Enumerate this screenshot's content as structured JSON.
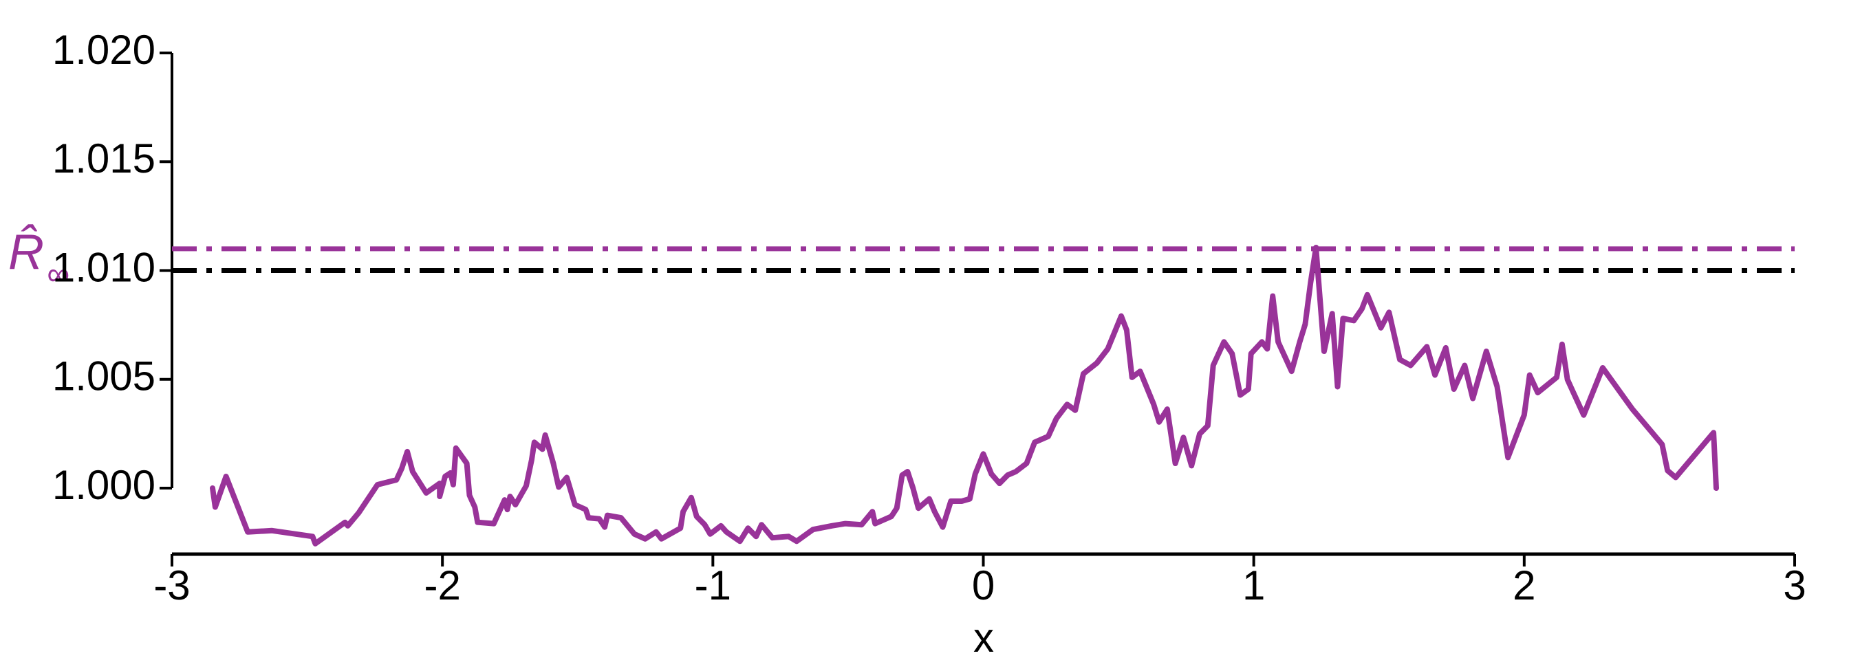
{
  "chart_data": {
    "type": "line",
    "xlabel": "x",
    "ylabel": {
      "text": "R̂",
      "subscript": "∞"
    },
    "xlim": [
      -3,
      3
    ],
    "xticks": [
      -3,
      -2,
      -1,
      0,
      1,
      2,
      3
    ],
    "ylim": [
      0.997,
      1.02
    ],
    "yticks": [
      {
        "value": 1.0,
        "label": "1.000"
      },
      {
        "value": 1.005,
        "label": "1.005"
      },
      {
        "value": 1.01,
        "label": "1.010"
      },
      {
        "value": 1.015,
        "label": "1.015"
      },
      {
        "value": 1.02,
        "label": "1.020"
      }
    ],
    "hlines": [
      {
        "y": 1.01,
        "color": "#000000"
      },
      {
        "y": 1.011,
        "color": "#993399"
      }
    ],
    "series": [
      {
        "color": "#993399",
        "x": [
          -2.85,
          -2.84,
          -2.8,
          -2.72,
          -2.63,
          -2.48,
          -2.47,
          -2.36,
          -2.35,
          -2.31,
          -2.24,
          -2.17,
          -2.15,
          -2.13,
          -2.11,
          -2.06,
          -2.01,
          -2.01,
          -1.99,
          -1.97,
          -1.96,
          -1.95,
          -1.91,
          -1.9,
          -1.88,
          -1.87,
          -1.81,
          -1.77,
          -1.76,
          -1.75,
          -1.73,
          -1.69,
          -1.67,
          -1.66,
          -1.63,
          -1.62,
          -1.59,
          -1.57,
          -1.54,
          -1.51,
          -1.47,
          -1.46,
          -1.42,
          -1.4,
          -1.39,
          -1.34,
          -1.29,
          -1.25,
          -1.21,
          -1.19,
          -1.12,
          -1.11,
          -1.08,
          -1.06,
          -1.03,
          -1.01,
          -0.97,
          -0.95,
          -0.9,
          -0.87,
          -0.84,
          -0.82,
          -0.78,
          -0.72,
          -0.69,
          -0.63,
          -0.56,
          -0.51,
          -0.45,
          -0.41,
          -0.4,
          -0.34,
          -0.32,
          -0.3,
          -0.28,
          -0.26,
          -0.24,
          -0.2,
          -0.18,
          -0.15,
          -0.12,
          -0.08,
          -0.05,
          -0.03,
          0.0,
          0.03,
          0.06,
          0.09,
          0.12,
          0.16,
          0.19,
          0.24,
          0.27,
          0.31,
          0.34,
          0.37,
          0.42,
          0.46,
          0.51,
          0.53,
          0.55,
          0.58,
          0.63,
          0.65,
          0.68,
          0.71,
          0.74,
          0.77,
          0.8,
          0.83,
          0.85,
          0.89,
          0.92,
          0.95,
          0.98,
          0.99,
          1.03,
          1.05,
          1.07,
          1.09,
          1.14,
          1.17,
          1.19,
          1.21,
          1.23,
          1.26,
          1.29,
          1.31,
          1.33,
          1.37,
          1.4,
          1.42,
          1.47,
          1.5,
          1.54,
          1.58,
          1.64,
          1.67,
          1.71,
          1.74,
          1.78,
          1.81,
          1.86,
          1.9,
          1.94,
          2.0,
          2.02,
          2.05,
          2.12,
          2.14,
          2.16,
          2.22,
          2.29,
          2.4,
          2.51,
          2.53,
          2.56,
          2.7,
          2.71
        ],
        "values": [
          1.0,
          0.99913,
          1.00054,
          0.99799,
          0.99805,
          0.99778,
          0.99745,
          0.99843,
          0.99827,
          0.99886,
          1.00016,
          1.00038,
          1.00092,
          1.00168,
          1.00076,
          0.99978,
          1.00022,
          0.99962,
          1.00054,
          1.0007,
          1.00016,
          1.00184,
          1.00114,
          0.99967,
          0.99913,
          0.99843,
          0.99837,
          0.99946,
          0.99902,
          0.99962,
          0.99924,
          1.00011,
          1.0013,
          1.00211,
          1.00179,
          1.00244,
          1.00114,
          1.00005,
          1.00049,
          0.99924,
          0.99902,
          0.99864,
          0.99859,
          0.99821,
          0.99875,
          0.99864,
          0.99789,
          0.99767,
          0.99799,
          0.99767,
          0.99816,
          0.99892,
          0.99957,
          0.9987,
          0.99832,
          0.99789,
          0.99827,
          0.99799,
          0.99756,
          0.99816,
          0.99778,
          0.99832,
          0.99772,
          0.99778,
          0.99756,
          0.9981,
          0.99827,
          0.99837,
          0.99832,
          0.99892,
          0.99837,
          0.9987,
          0.99908,
          1.0006,
          1.00076,
          1.0,
          0.99908,
          0.99951,
          0.99892,
          0.99821,
          0.9994,
          0.9994,
          0.99951,
          1.00065,
          1.00157,
          1.00065,
          1.00022,
          1.0006,
          1.00076,
          1.00114,
          1.00211,
          1.00238,
          1.0032,
          1.00385,
          1.00358,
          1.00526,
          1.00575,
          1.0064,
          1.00791,
          1.00726,
          1.00509,
          1.00537,
          1.00385,
          1.00304,
          1.00363,
          1.00114,
          1.00233,
          1.00103,
          1.00249,
          1.00287,
          1.00564,
          1.00672,
          1.00618,
          1.00428,
          1.00455,
          1.00618,
          1.00672,
          1.0064,
          1.00883,
          1.00672,
          1.00537,
          1.00672,
          1.00753,
          1.00943,
          1.01106,
          1.00629,
          1.00802,
          1.00466,
          1.0078,
          1.0077,
          1.00824,
          1.00889,
          1.00737,
          1.00808,
          1.00591,
          1.00564,
          1.0065,
          1.0052,
          1.00645,
          1.00455,
          1.00564,
          1.00412,
          1.00629,
          1.00466,
          1.00141,
          1.00336,
          1.0052,
          1.00439,
          1.00509,
          1.00661,
          1.00499,
          1.00336,
          1.00553,
          1.00363,
          1.00201,
          1.00081,
          1.00049,
          1.00255,
          1.0
        ]
      }
    ]
  }
}
